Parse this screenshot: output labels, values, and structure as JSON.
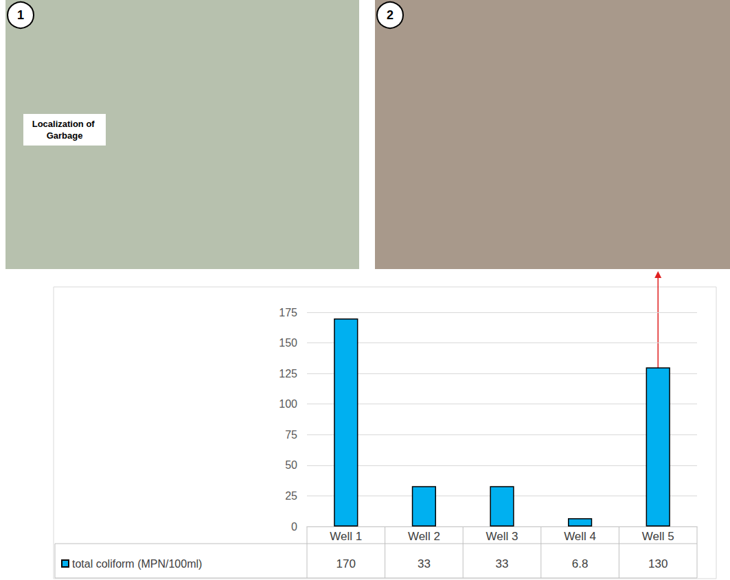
{
  "chart_data": {
    "type": "bar",
    "categories": [
      "Well 1",
      "Well 2",
      "Well 3",
      "Well 4",
      "Well 5"
    ],
    "series": [
      {
        "name": "total coliform (MPN/100ml)",
        "color": "#00b0f0",
        "values": [
          170,
          33,
          33,
          6.8,
          130
        ]
      }
    ],
    "ylim": [
      0,
      175
    ],
    "yticks": [
      0,
      25,
      50,
      75,
      100,
      125,
      150,
      175
    ],
    "grid": true,
    "legend": "bottom-left"
  },
  "photos": [
    {
      "label": "1",
      "annotation": "Localization of Garbage"
    },
    {
      "label": "2"
    }
  ]
}
